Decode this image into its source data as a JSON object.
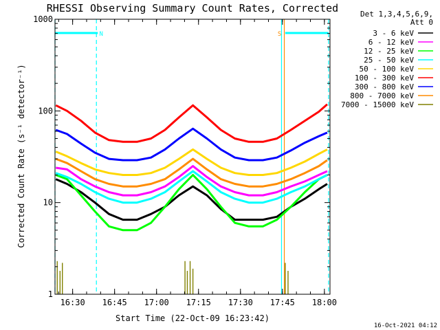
{
  "chart_data": {
    "type": "line",
    "title": "RHESSI Observing Summary Count Rates, Corrected",
    "xlabel": "Start Time (22-Oct-09 16:23:42)",
    "ylabel": "Corrected Count Rate (s⁻¹ detector⁻¹)",
    "y_scale": "log",
    "ylim": [
      1,
      1000
    ],
    "xlim": [
      "16:23:42",
      "18:02:00"
    ],
    "x_tick_labels": [
      "16:30",
      "16:45",
      "17:00",
      "17:15",
      "17:30",
      "17:45",
      "18:00"
    ],
    "y_tick_labels": [
      "1",
      "10",
      "100",
      "1000"
    ],
    "legend_header": [
      "Det 1,3,4,5,6,9,",
      "Att 0"
    ],
    "legend_position": "right",
    "timestamp": "16-Oct-2021 04:12",
    "flags": [
      {
        "label": "N",
        "color": "#00ffff",
        "bar_start": "16:23:42",
        "bar_end": "16:39:00",
        "marker_time": "16:38:30"
      },
      {
        "label": "S",
        "color": "#ff8c00",
        "marker_time": "17:45:40"
      },
      {
        "label": "",
        "color": "#00ffff",
        "bar_start": "17:46:00",
        "bar_end": "18:01:30",
        "marker_time": "18:01:30"
      }
    ],
    "vertical_lines": [
      {
        "time": "16:23:42",
        "color": "#00ffff",
        "style": "dashed"
      },
      {
        "time": "16:38:30",
        "color": "#00ffff",
        "style": "dashed"
      },
      {
        "time": "17:44:40",
        "color": "#00ffff",
        "style": "solid"
      },
      {
        "time": "17:45:40",
        "color": "#ff8c00",
        "style": "solid"
      },
      {
        "time": "18:01:30",
        "color": "#00ffff",
        "style": "dashed"
      }
    ],
    "x": [
      "16:24",
      "16:28",
      "16:33",
      "16:38",
      "16:43",
      "16:48",
      "16:53",
      "16:58",
      "17:03",
      "17:08",
      "17:13",
      "17:18",
      "17:23",
      "17:28",
      "17:33",
      "17:38",
      "17:43",
      "17:48",
      "17:53",
      "17:58",
      "18:01"
    ],
    "series": [
      {
        "name": "3 - 6 keV",
        "color": "#000000",
        "values": [
          18,
          16,
          13,
          10,
          7.5,
          6.5,
          6.5,
          7.5,
          9,
          12,
          15,
          12,
          8.5,
          6.5,
          6.5,
          6.5,
          7,
          9,
          11,
          14,
          16
        ]
      },
      {
        "name": "6 - 12 keV",
        "color": "#ff00ff",
        "values": [
          24,
          23,
          18,
          15,
          13,
          12,
          12,
          13,
          15,
          19,
          25,
          19,
          15,
          13,
          12,
          12,
          13,
          15,
          17,
          20,
          22
        ]
      },
      {
        "name": "12 - 25 keV",
        "color": "#00ff00",
        "values": [
          20,
          18,
          12,
          8,
          5.5,
          5,
          5,
          6,
          9,
          14,
          20,
          14,
          9,
          6,
          5.5,
          5.5,
          6.5,
          9,
          13,
          18,
          20
        ]
      },
      {
        "name": "25 - 50 keV",
        "color": "#00ffff",
        "values": [
          21,
          19,
          16,
          13,
          11,
          10,
          10,
          11,
          13,
          17,
          22,
          17,
          13,
          11,
          10,
          10,
          11,
          13,
          15,
          18,
          20
        ]
      },
      {
        "name": "50 - 100 keV",
        "color": "#ffd700",
        "values": [
          36,
          32,
          27,
          23,
          21,
          20,
          20,
          21,
          24,
          30,
          38,
          30,
          24,
          21,
          20,
          20,
          21,
          24,
          28,
          34,
          38
        ]
      },
      {
        "name": "100 - 300 keV",
        "color": "#ff0000",
        "values": [
          115,
          100,
          78,
          58,
          48,
          46,
          46,
          50,
          62,
          85,
          115,
          85,
          62,
          50,
          46,
          46,
          50,
          62,
          78,
          98,
          118
        ]
      },
      {
        "name": "300 - 800 keV",
        "color": "#0000ff",
        "values": [
          62,
          56,
          44,
          35,
          30,
          29,
          29,
          31,
          38,
          50,
          64,
          50,
          38,
          31,
          29,
          29,
          31,
          37,
          45,
          53,
          58
        ]
      },
      {
        "name": "800 - 7000 keV",
        "color": "#ff8c00",
        "values": [
          30,
          27,
          22,
          18,
          16,
          15,
          15,
          16,
          18,
          23,
          30,
          23,
          18,
          16,
          15,
          15,
          16,
          18,
          21,
          25,
          29
        ]
      },
      {
        "name": "7000 - 15000 keV",
        "color": "#808000",
        "values": [
          1,
          1,
          1,
          1,
          1,
          1,
          1,
          1,
          1,
          1,
          1,
          1,
          1,
          1,
          1,
          1,
          1,
          1,
          1,
          1,
          1
        ],
        "spikes": [
          {
            "time": "16:24:30",
            "value": 2.3
          },
          {
            "time": "16:25:30",
            "value": 1.8
          },
          {
            "time": "16:26:20",
            "value": 2.2
          },
          {
            "time": "17:10:10",
            "value": 2.3
          },
          {
            "time": "17:11:00",
            "value": 1.8
          },
          {
            "time": "17:12:00",
            "value": 2.3
          },
          {
            "time": "17:13:00",
            "value": 1.9
          },
          {
            "time": "17:46:00",
            "value": 2.2
          },
          {
            "time": "17:47:00",
            "value": 1.8
          }
        ]
      }
    ]
  }
}
